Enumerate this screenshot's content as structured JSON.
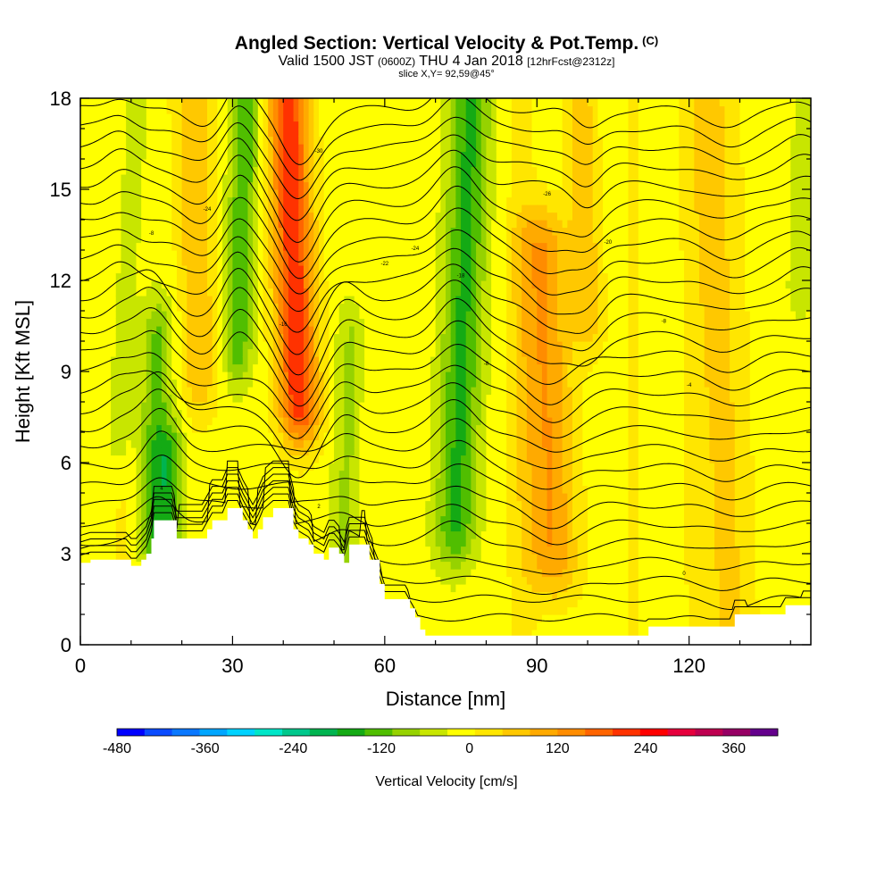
{
  "chart_data": {
    "type": "heatmap",
    "title": "Angled Section: Vertical Velocity & Pot.Temp.",
    "title_unit": "(C)",
    "valid_prefix": "Valid 1500 JST",
    "valid_utc": "(0600Z)",
    "valid_date": "THU 4 Jan 2018",
    "valid_run": "[12hrFcst@2312z]",
    "slice": "slice X,Y= 92,59@45°",
    "xlabel": "Distance [nm]",
    "ylabel": "Height [Kft MSL]",
    "xlim": [
      0,
      144
    ],
    "ylim": [
      0,
      18
    ],
    "x_ticks": [
      0,
      30,
      60,
      90,
      120
    ],
    "y_ticks": [
      0,
      3,
      6,
      9,
      12,
      15,
      18
    ],
    "colorbar": {
      "label": "Vertical Velocity [cm/s]",
      "min": -480,
      "max": 420,
      "step": 40,
      "tick_values": [
        -480,
        -360,
        -240,
        -120,
        0,
        120,
        240,
        360
      ],
      "colors": [
        "#0000ff",
        "#0a4bff",
        "#0a78ff",
        "#00a6ff",
        "#00d2ff",
        "#00e6c8",
        "#00c88c",
        "#00b450",
        "#14aa14",
        "#50be00",
        "#96d200",
        "#c8e600",
        "#ffff00",
        "#ffe600",
        "#ffc800",
        "#ffaa00",
        "#ff8c00",
        "#ff6400",
        "#ff3200",
        "#ff0000",
        "#e6003c",
        "#be0050",
        "#960064",
        "#64008c"
      ]
    },
    "vertical_velocity_features": [
      {
        "x": 8,
        "width": 3,
        "z_bottom": 7,
        "z_top": 18,
        "value": -60
      },
      {
        "x": 14,
        "width": 3,
        "z_bottom": 4,
        "z_top": 10,
        "value": -110
      },
      {
        "x": 17,
        "width": 3,
        "z_bottom": 3,
        "z_top": 6,
        "value": -130
      },
      {
        "x": 24,
        "width": 4,
        "z_bottom": 9,
        "z_top": 18,
        "value": 80
      },
      {
        "x": 31,
        "width": 3,
        "z_bottom": 10,
        "z_top": 18,
        "value": -130
      },
      {
        "x": 43,
        "width": 4,
        "z_bottom": 8,
        "z_top": 18,
        "value": 250
      },
      {
        "x": 52,
        "width": 3,
        "z_bottom": 3,
        "z_top": 10,
        "value": -70
      },
      {
        "x": 74,
        "width": 4,
        "z_bottom": 4,
        "z_top": 18,
        "value": -150
      },
      {
        "x": 93,
        "width": 5,
        "z_bottom": 3,
        "z_top": 13,
        "value": 140
      },
      {
        "x": 100,
        "width": 3,
        "z_bottom": 11,
        "z_top": 18,
        "value": 90
      },
      {
        "x": 128,
        "width": 5,
        "z_bottom": 1,
        "z_top": 18,
        "value": 70
      },
      {
        "x": 142,
        "width": 3,
        "z_bottom": 12,
        "z_top": 18,
        "value": -40
      }
    ],
    "terrain": [
      [
        0,
        2.7
      ],
      [
        2,
        2.8
      ],
      [
        9,
        2.8
      ],
      [
        10,
        2.6
      ],
      [
        11,
        2.6
      ],
      [
        12,
        2.8
      ],
      [
        13,
        3.0
      ],
      [
        14,
        3.5
      ],
      [
        14.5,
        4.1
      ],
      [
        18,
        4.1
      ],
      [
        19,
        3.5
      ],
      [
        20,
        3.5
      ],
      [
        24,
        3.5
      ],
      [
        25,
        3.8
      ],
      [
        26,
        4.1
      ],
      [
        28,
        4.1
      ],
      [
        29,
        4.5
      ],
      [
        31,
        4.5
      ],
      [
        32,
        4.1
      ],
      [
        33,
        3.8
      ],
      [
        34,
        3.5
      ],
      [
        35,
        3.8
      ],
      [
        36,
        4.2
      ],
      [
        38,
        4.5
      ],
      [
        41,
        4.5
      ],
      [
        42,
        3.8
      ],
      [
        43,
        3.5
      ],
      [
        45,
        3.3
      ],
      [
        46,
        3.0
      ],
      [
        48,
        2.8
      ],
      [
        49,
        3.2
      ],
      [
        50,
        3.2
      ],
      [
        51,
        3.0
      ],
      [
        52,
        2.7
      ],
      [
        53,
        3.3
      ],
      [
        56,
        3.3
      ],
      [
        57,
        2.8
      ],
      [
        59,
        2.0
      ],
      [
        60,
        1.5
      ],
      [
        64,
        1.5
      ],
      [
        65,
        1.2
      ],
      [
        66,
        0.9
      ],
      [
        67,
        0.5
      ],
      [
        68,
        0.3
      ],
      [
        111,
        0.3
      ],
      [
        112,
        0.6
      ],
      [
        128,
        0.6
      ],
      [
        129,
        1.0
      ],
      [
        138,
        1.0
      ],
      [
        139,
        1.3
      ],
      [
        144,
        1.3
      ]
    ],
    "theta_contours": {
      "base_level": -10,
      "step": 2,
      "count": 28
    },
    "contour_labels": [
      {
        "x": 14,
        "y": 13.5,
        "text": "-8"
      },
      {
        "x": 25,
        "y": 14.3,
        "text": "-24"
      },
      {
        "x": 40,
        "y": 10.5,
        "text": "-16"
      },
      {
        "x": 47,
        "y": 16.2,
        "text": "-30"
      },
      {
        "x": 60,
        "y": 12.5,
        "text": "-22"
      },
      {
        "x": 66,
        "y": 13.0,
        "text": "-24"
      },
      {
        "x": 75,
        "y": 12.1,
        "text": "-18"
      },
      {
        "x": 80,
        "y": 9.2,
        "text": "-8"
      },
      {
        "x": 92,
        "y": 14.8,
        "text": "-26"
      },
      {
        "x": 104,
        "y": 13.2,
        "text": "-20"
      },
      {
        "x": 115,
        "y": 10.6,
        "text": "-8"
      },
      {
        "x": 120,
        "y": 8.5,
        "text": "-4"
      },
      {
        "x": 119,
        "y": 2.3,
        "text": "0"
      },
      {
        "x": 47,
        "y": 4.5,
        "text": "2"
      },
      {
        "x": 16,
        "y": 5.1,
        "text": "4"
      }
    ]
  }
}
